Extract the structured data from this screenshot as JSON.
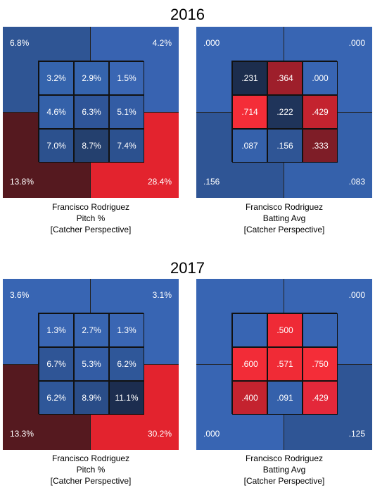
{
  "chart_data": [
    {
      "type": "heatmap",
      "year": "2016",
      "player": "Francisco Rodriguez",
      "metric": "Pitch %",
      "perspective": "[Catcher Perspective]",
      "outer": {
        "top_left": "6.8%",
        "top_right": "4.2%",
        "bottom_left": "13.8%",
        "bottom_right": "28.4%"
      },
      "outer_colors": {
        "top_left": "#2f5594",
        "top_right": "#3863b1",
        "bottom_left": "#55191f",
        "bottom_right": "#e3232e"
      },
      "inner": [
        [
          "3.2%",
          "2.9%",
          "1.5%"
        ],
        [
          "4.6%",
          "6.3%",
          "5.1%"
        ],
        [
          "7.0%",
          "8.7%",
          "7.4%"
        ]
      ],
      "inner_colors": [
        [
          "#3564ad",
          "#3564ad",
          "#3a66b3"
        ],
        [
          "#3461a9",
          "#2f5598",
          "#335ca4"
        ],
        [
          "#2c518e",
          "#24406e",
          "#2c518f"
        ]
      ]
    },
    {
      "type": "heatmap",
      "year": "2016",
      "player": "Francisco Rodriguez",
      "metric": "Batting Avg",
      "perspective": "[Catcher Perspective]",
      "outer": {
        "top_left": ".000",
        "top_right": ".000",
        "bottom_left": ".156",
        "bottom_right": ".083"
      },
      "outer_colors": {
        "top_left": "#3865b3",
        "top_right": "#3865b3",
        "bottom_left": "#2f5595",
        "bottom_right": "#3561ab"
      },
      "inner": [
        [
          ".231",
          ".364",
          ".000"
        ],
        [
          ".714",
          ".222",
          ".429"
        ],
        [
          ".087",
          ".156",
          ".333"
        ]
      ],
      "inner_colors": [
        [
          "#1c2d4d",
          "#9e1f2b",
          "#3865b3"
        ],
        [
          "#f42d38",
          "#1f345a",
          "#c4232f"
        ],
        [
          "#3561ab",
          "#2f5595",
          "#7e1d27"
        ]
      ]
    },
    {
      "type": "heatmap",
      "year": "2017",
      "player": "Francisco Rodriguez",
      "metric": "Pitch %",
      "perspective": "[Catcher Perspective]",
      "outer": {
        "top_left": "3.6%",
        "top_right": "3.1%",
        "bottom_left": "13.3%",
        "bottom_right": "30.2%"
      },
      "outer_colors": {
        "top_left": "#3865b3",
        "top_right": "#3865b3",
        "bottom_left": "#55191f",
        "bottom_right": "#e3232e"
      },
      "inner": [
        [
          "1.3%",
          "2.7%",
          "1.3%"
        ],
        [
          "6.7%",
          "5.3%",
          "6.2%"
        ],
        [
          "6.2%",
          "8.9%",
          "11.1%"
        ]
      ],
      "inner_colors": [
        [
          "#3a66b3",
          "#3865b1",
          "#3a66b3"
        ],
        [
          "#2f5596",
          "#335ca4",
          "#2f5799"
        ],
        [
          "#2f5799",
          "#2a4d88",
          "#1c2d4f"
        ]
      ]
    },
    {
      "type": "heatmap",
      "year": "2017",
      "player": "Francisco Rodriguez",
      "metric": "Batting Avg",
      "perspective": "[Catcher Perspective]",
      "outer": {
        "top_left": "",
        "top_right": ".000",
        "bottom_left": ".000",
        "bottom_right": ".125"
      },
      "outer_colors": {
        "top_left": "#3865b3",
        "top_right": "#3865b3",
        "bottom_left": "#3865b3",
        "bottom_right": "#2f5595"
      },
      "inner": [
        [
          "",
          ".500",
          ""
        ],
        [
          ".600",
          ".571",
          ".750"
        ],
        [
          ".400",
          ".091",
          ".429"
        ]
      ],
      "inner_colors": [
        [
          "#3865b3",
          "#ef2a36",
          "#3865b3"
        ],
        [
          "#f22c37",
          "#f02b36",
          "#f42d38"
        ],
        [
          "#c4232f",
          "#3561ab",
          "#e4283a"
        ]
      ]
    }
  ]
}
